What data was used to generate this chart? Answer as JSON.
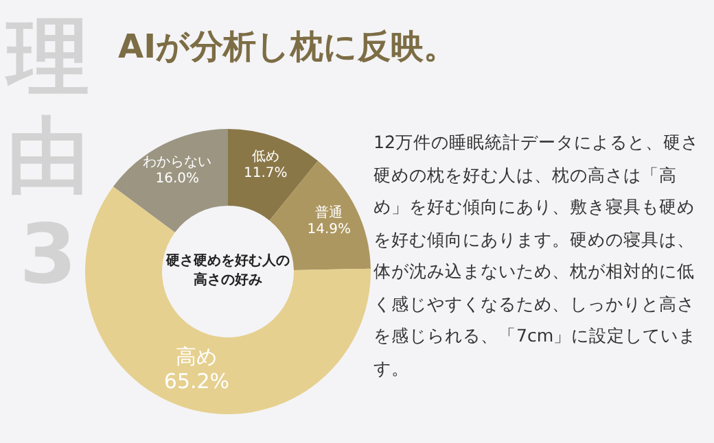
{
  "chart_data": {
    "type": "donut",
    "title": "AIが分析し枕に反映。",
    "categories": [
      "低め",
      "普通",
      "高め",
      "わからない"
    ],
    "values": [
      11.7,
      14.9,
      65.2,
      16.0
    ],
    "value_labels": [
      "11.7%",
      "14.9%",
      "65.2%",
      "16.0%"
    ],
    "colors": [
      "#8a7748",
      "#ad9760",
      "#e6d08f",
      "#9b9582"
    ],
    "legend": false,
    "annotations": [
      "理由3",
      "硬さ硬めを好む人の高さの好み",
      "12万件の睡眠統計データによると、硬さ硬めの枕を好む人は、枕の高さは「高め」を好む傾向にあり、敷き寝具も硬めを好む傾向にあります。硬めの寝具は、体が沈み込まないため、枕が相対的に低く感じやすくなるため、しっかりと高さを感じられる、「7cm」に設定しています。"
    ]
  }
}
